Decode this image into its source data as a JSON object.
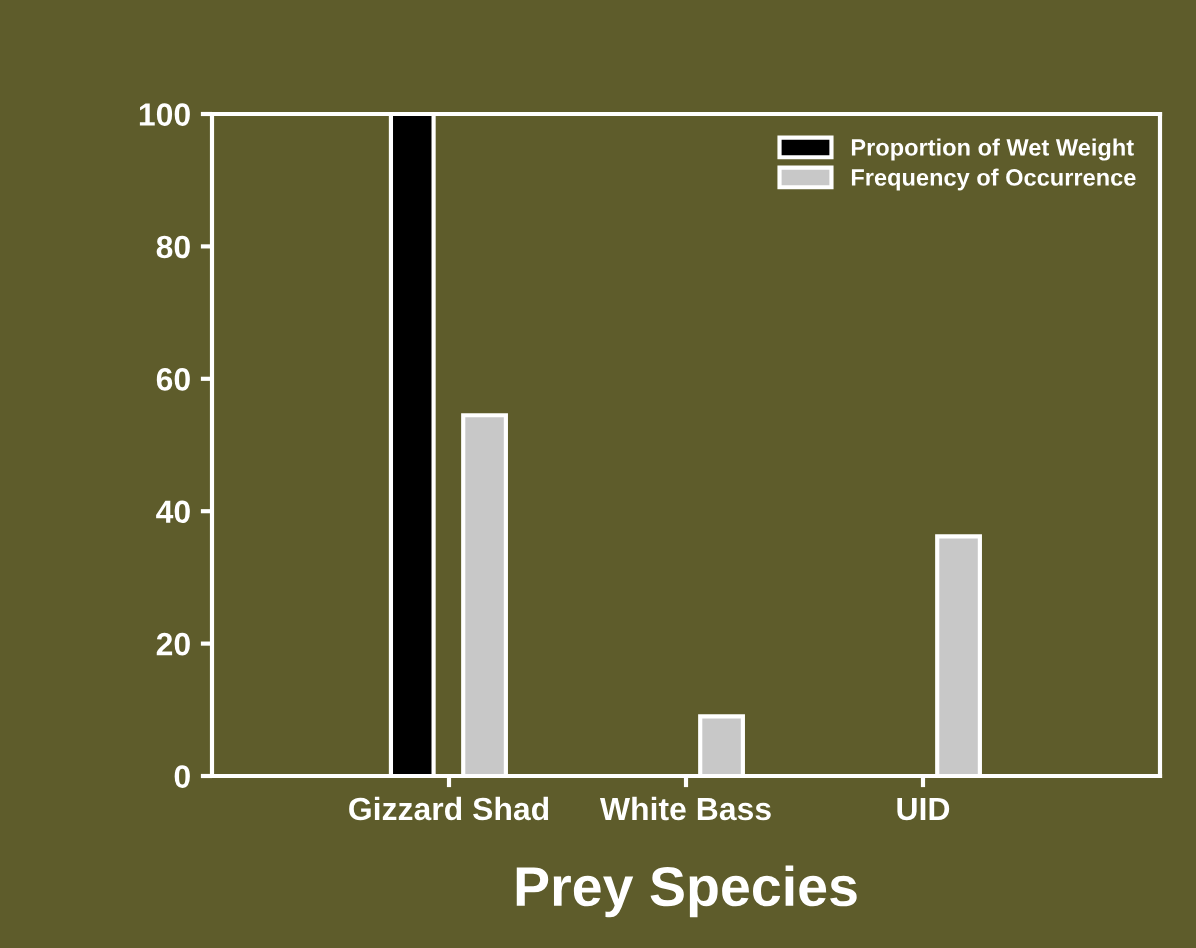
{
  "chart_data": {
    "type": "bar",
    "xlabel": "Prey Species",
    "categories": [
      "Gizzard Shad",
      "White Bass",
      "UID"
    ],
    "series": [
      {
        "name": "Proportion of Wet Weight",
        "color": "#000000",
        "values": [
          100,
          null,
          null
        ]
      },
      {
        "name": "Frequency of Occurrence",
        "color": "#c8c8c8",
        "values": [
          54.5,
          9,
          36.2
        ]
      }
    ],
    "ylim": [
      0,
      100
    ],
    "yticks": [
      0,
      20,
      40,
      60,
      80,
      100
    ],
    "grid": false,
    "legend": "top right"
  }
}
